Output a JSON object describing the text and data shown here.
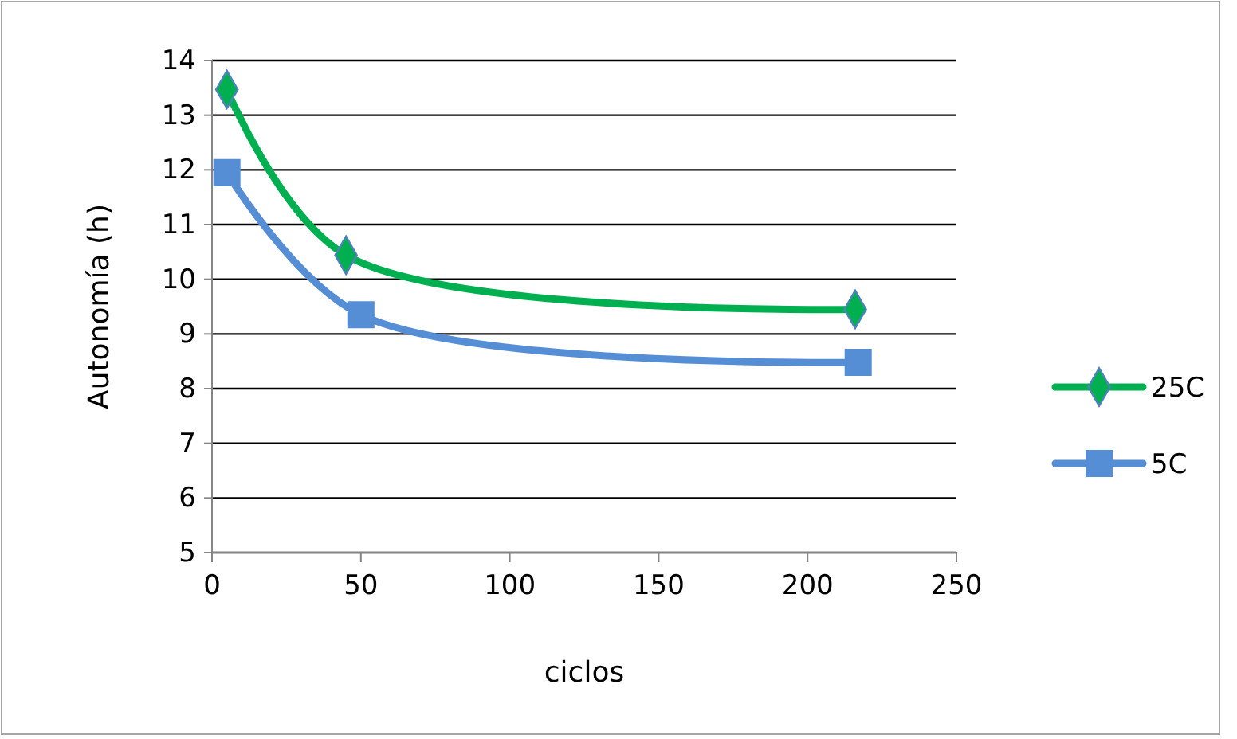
{
  "chart_data": {
    "type": "line",
    "xlabel": "ciclos",
    "ylabel": "Autonomía (h)",
    "xlim": [
      0,
      250
    ],
    "xticks": [
      0,
      50,
      100,
      150,
      200,
      250
    ],
    "ylim": [
      5,
      14
    ],
    "yticks": [
      5,
      6,
      7,
      8,
      9,
      10,
      11,
      12,
      13,
      14
    ],
    "grid": "y",
    "legend": "right",
    "series": [
      {
        "name": "25C",
        "color": "#00b050",
        "marker": "diamond",
        "x": [
          5,
          45,
          216
        ],
        "values": [
          13.47,
          10.44,
          9.45
        ]
      },
      {
        "name": "5C",
        "color": "#558ed5",
        "marker": "square",
        "x": [
          5,
          50,
          217
        ],
        "values": [
          11.95,
          9.35,
          8.48
        ]
      }
    ]
  }
}
